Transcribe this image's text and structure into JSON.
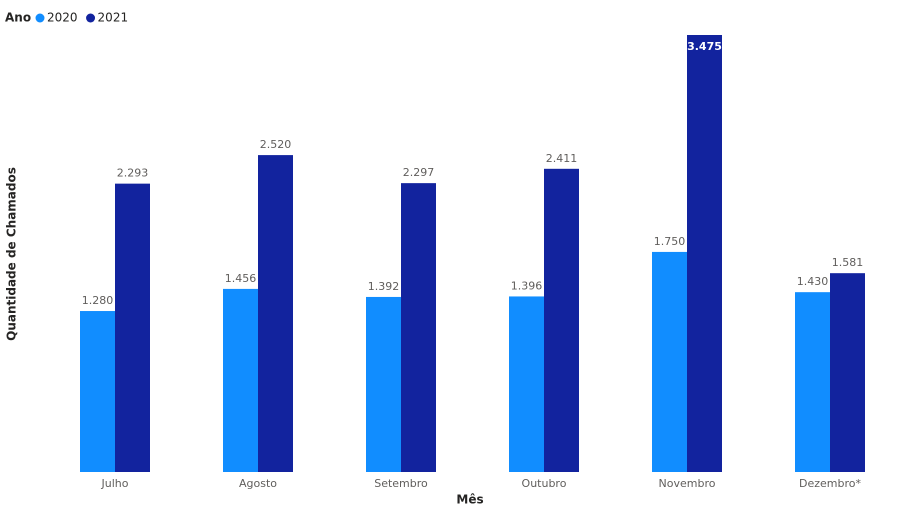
{
  "chart_data": {
    "type": "bar",
    "legend_title": "Ano",
    "x_label": "Mês",
    "y_label": "Quantidade de Chamados",
    "categories": [
      "Julho",
      "Agosto",
      "Setembro",
      "Outubro",
      "Novembro",
      "Dezembro*"
    ],
    "series": [
      {
        "name": "2020",
        "color": "#118dff",
        "values": [
          1280,
          1456,
          1392,
          1396,
          1750,
          1430
        ],
        "value_labels": [
          "1.280",
          "1.456",
          "1.392",
          "1.396",
          "1.750",
          "1.430"
        ]
      },
      {
        "name": "2021",
        "color": "#12239e",
        "values": [
          2293,
          2520,
          2297,
          2411,
          3475,
          1581
        ],
        "value_labels": [
          "2.293",
          "2.520",
          "2.297",
          "2.411",
          "3.475",
          "1.581"
        ]
      }
    ],
    "ylim": [
      0,
      3475
    ],
    "legend_position": "top-left"
  }
}
